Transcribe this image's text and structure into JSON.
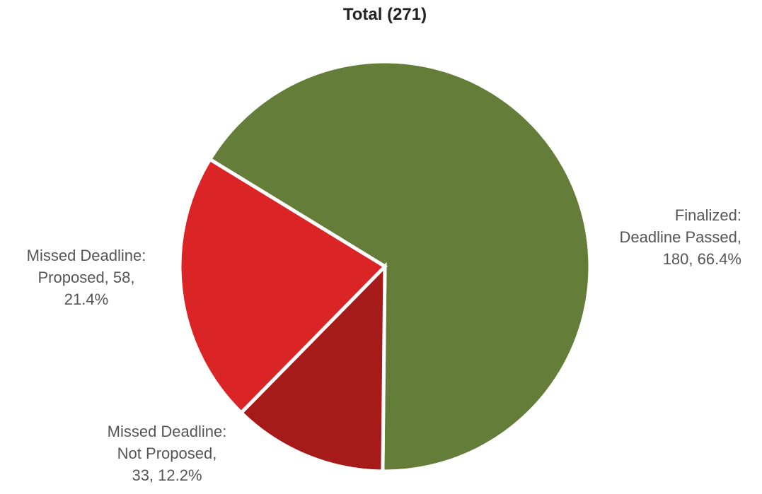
{
  "chart_data": {
    "type": "pie",
    "title": "Total (271)",
    "total": 271,
    "start_angle_deg": -58.5,
    "direction": "clockwise",
    "slices": [
      {
        "name": "Finalized: Deadline Passed",
        "value": 180,
        "percent": 66.4,
        "color": "#647d39",
        "label_lines": [
          "Finalized:",
          "Deadline Passed,",
          "180, 66.4%"
        ],
        "label_align": "end"
      },
      {
        "name": "Missed Deadline: Not Proposed",
        "value": 33,
        "percent": 12.2,
        "color": "#a61a1a",
        "label_lines": [
          "Missed Deadline:",
          "Not Proposed,",
          "33, 12.2%"
        ],
        "label_align": "middle"
      },
      {
        "name": "Missed Deadline: Proposed",
        "value": 58,
        "percent": 21.4,
        "color": "#db2426",
        "label_lines": [
          "Missed Deadline:",
          "Proposed, 58,",
          "21.4%"
        ],
        "label_align": "middle"
      }
    ]
  }
}
